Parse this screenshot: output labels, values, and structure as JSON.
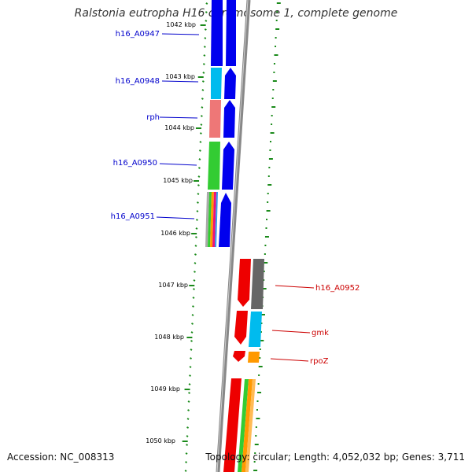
{
  "title": "Ralstonia eutropha H16 chromosome 1, complete genome",
  "accession": "Accession: NC_008313",
  "summary": "Topology: circular; Length: 4,052,032 bp; Genes: 3,711",
  "ruler": [
    "1042 kbp",
    "1043 kbp",
    "1044 kbp",
    "1045 kbp",
    "1046 kbp",
    "1047 kbp",
    "1048 kbp",
    "1049 kbp",
    "1050 kbp"
  ],
  "genes_left": [
    {
      "label": "h16_A0947",
      "color": "#0000cc"
    },
    {
      "label": "h16_A0948",
      "color": "#0000cc"
    },
    {
      "label": "rph",
      "color": "#0000cc"
    },
    {
      "label": "h16_A0950",
      "color": "#0000cc"
    },
    {
      "label": "h16_A0951",
      "color": "#0000cc"
    }
  ],
  "genes_right": [
    {
      "label": "h16_A0952",
      "color": "#cc0000"
    },
    {
      "label": "gmk",
      "color": "#cc0000"
    },
    {
      "label": "rpoZ",
      "color": "#cc0000"
    }
  ],
  "colors": {
    "forward_strand": "#0000ee",
    "reverse_strand": "#ee0000",
    "backbone": "#888888",
    "gc_ticks": "#1a8a1a",
    "cog_cyan": "#00bbee",
    "cog_pink": "#ee7777",
    "cog_green": "#33cc33",
    "cog_gray": "#666666",
    "cog_orange": "#ff9900"
  }
}
